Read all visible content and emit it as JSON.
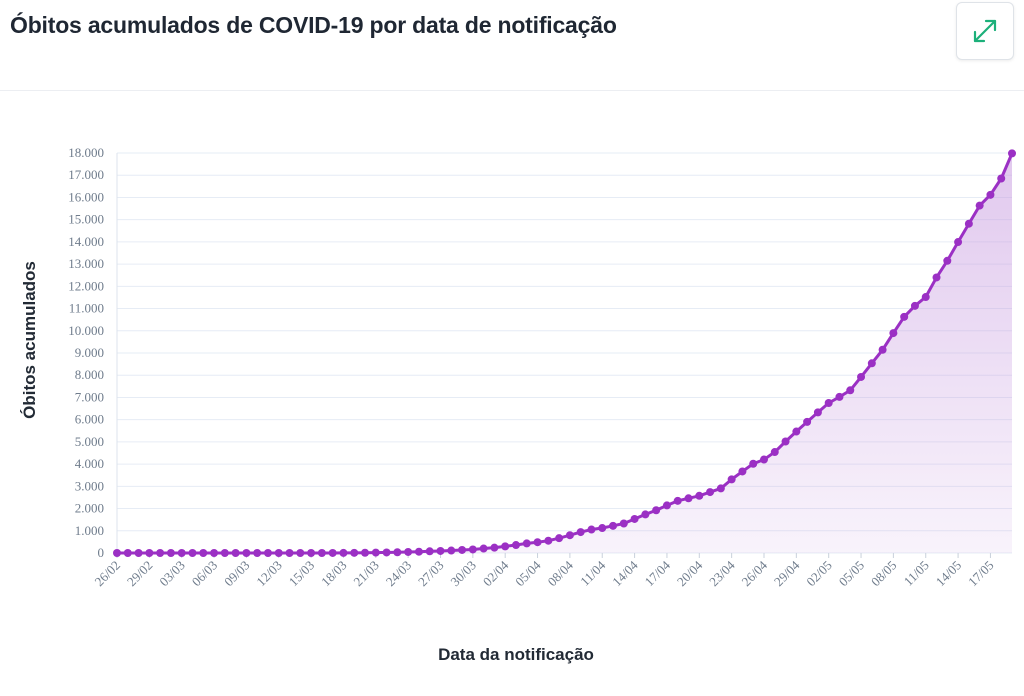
{
  "header": {
    "title": "Óbitos acumulados de COVID-19 por data de notificação",
    "expand_icon": "expand-arrows-icon"
  },
  "colors": {
    "series": "#9b30c4",
    "fill": "#c89ce0",
    "grid": "#e6ecf5",
    "accent_icon": "#1cb07a"
  },
  "chart_data": {
    "type": "area",
    "title": "Óbitos acumulados de COVID-19 por data de notificação",
    "xlabel": "Data da notificação",
    "ylabel": "Óbitos acumulados",
    "ylim": [
      0,
      18000
    ],
    "yticks": [
      0,
      1000,
      2000,
      3000,
      4000,
      5000,
      6000,
      7000,
      8000,
      9000,
      10000,
      11000,
      12000,
      13000,
      14000,
      15000,
      16000,
      17000,
      18000
    ],
    "ytick_labels": [
      "0",
      "1.000",
      "2.000",
      "3.000",
      "4.000",
      "5.000",
      "6.000",
      "7.000",
      "8.000",
      "9.000",
      "10.000",
      "11.000",
      "12.000",
      "13.000",
      "14.000",
      "15.000",
      "16.000",
      "17.000",
      "18.000"
    ],
    "xtick_labels": [
      "26/02",
      "29/02",
      "03/03",
      "06/03",
      "09/03",
      "12/03",
      "15/03",
      "18/03",
      "21/03",
      "24/03",
      "27/03",
      "30/03",
      "02/04",
      "05/04",
      "08/04",
      "11/04",
      "14/04",
      "17/04",
      "20/04",
      "23/04",
      "26/04",
      "29/04",
      "02/05",
      "05/05",
      "08/05",
      "11/05",
      "14/05",
      "17/05"
    ],
    "x": [
      "26/02",
      "27/02",
      "28/02",
      "29/02",
      "01/03",
      "02/03",
      "03/03",
      "04/03",
      "05/03",
      "06/03",
      "07/03",
      "08/03",
      "09/03",
      "10/03",
      "11/03",
      "12/03",
      "13/03",
      "14/03",
      "15/03",
      "16/03",
      "17/03",
      "18/03",
      "19/03",
      "20/03",
      "21/03",
      "22/03",
      "23/03",
      "24/03",
      "25/03",
      "26/03",
      "27/03",
      "28/03",
      "29/03",
      "30/03",
      "31/03",
      "01/04",
      "02/04",
      "03/04",
      "04/04",
      "05/04",
      "06/04",
      "07/04",
      "08/04",
      "09/04",
      "10/04",
      "11/04",
      "12/04",
      "13/04",
      "14/04",
      "15/04",
      "16/04",
      "17/04",
      "18/04",
      "19/04",
      "20/04",
      "21/04",
      "22/04",
      "23/04",
      "24/04",
      "25/04",
      "26/04",
      "27/04",
      "28/04",
      "29/04",
      "30/04",
      "01/05",
      "02/05",
      "03/05",
      "04/05",
      "05/05",
      "06/05",
      "07/05",
      "08/05",
      "09/05",
      "10/05",
      "11/05",
      "12/05",
      "13/05",
      "14/05",
      "15/05",
      "16/05",
      "17/05",
      "18/05",
      "19/05"
    ],
    "series": [
      {
        "values": [
          0,
          0,
          0,
          0,
          0,
          0,
          0,
          0,
          0,
          0,
          0,
          0,
          0,
          0,
          0,
          0,
          0,
          0,
          0,
          0,
          1,
          4,
          7,
          11,
          18,
          25,
          34,
          46,
          59,
          77,
          92,
          111,
          136,
          159,
          201,
          240,
          299,
          359,
          431,
          486,
          553,
          667,
          800,
          941,
          1056,
          1124,
          1223,
          1328,
          1532,
          1736,
          1924,
          2141,
          2347,
          2462,
          2575,
          2741,
          2906,
          3313,
          3670,
          4016,
          4205,
          4543,
          5017,
          5466,
          5901,
          6329,
          6750,
          7025,
          7321,
          7921,
          8536,
          9146,
          9897,
          10627,
          11123,
          11519,
          12400,
          13149,
          13993,
          14817,
          15633,
          16118,
          16853,
          17983
        ]
      }
    ],
    "grid": true
  }
}
